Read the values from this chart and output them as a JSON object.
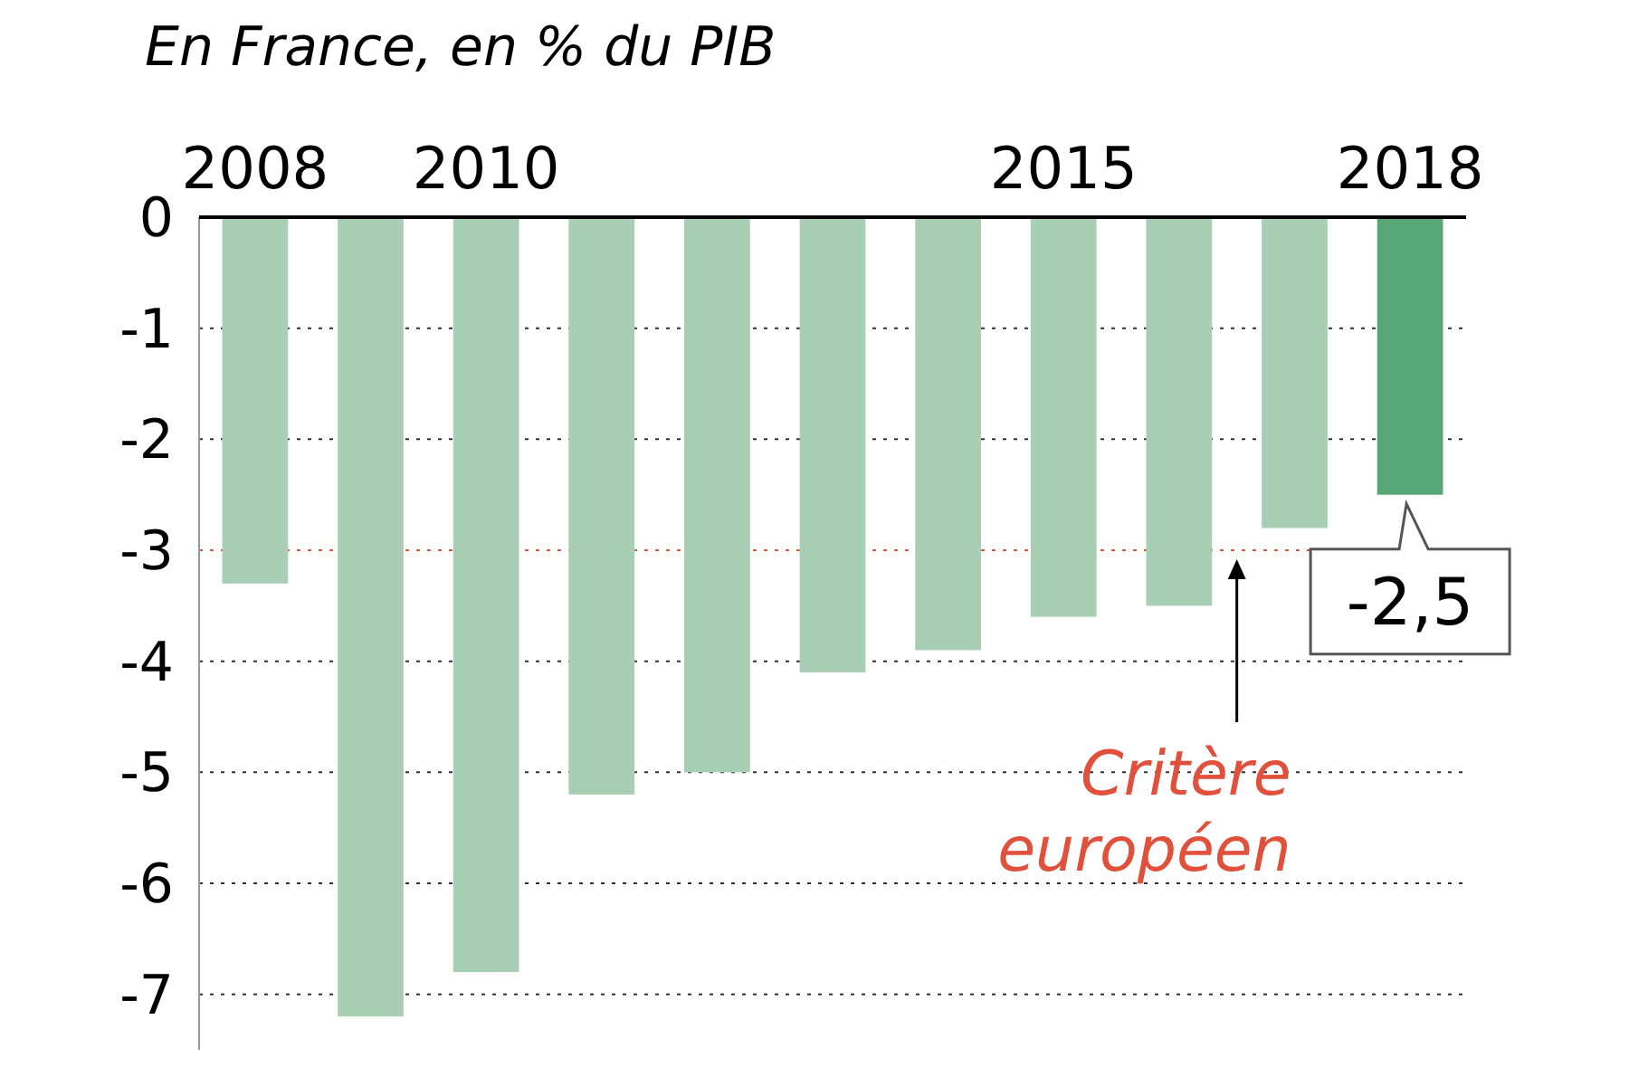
{
  "chart_data": {
    "type": "bar",
    "title": "En France, en % du PIB",
    "categories": [
      "2008",
      null,
      "2010",
      null,
      null,
      null,
      null,
      "2015",
      null,
      null,
      "2018"
    ],
    "values": [
      -3.3,
      -7.2,
      -6.8,
      -5.2,
      -5.0,
      -4.1,
      -3.9,
      -3.6,
      -3.5,
      -2.8,
      -2.5
    ],
    "colors": [
      "#a8cfb4",
      "#a8cfb4",
      "#a8cfb4",
      "#a8cfb4",
      "#a8cfb4",
      "#a8cfb4",
      "#a8cfb4",
      "#a8cfb4",
      "#a8cfb4",
      "#a8cfb4",
      "#57a675"
    ],
    "value_labels": [
      null,
      null,
      null,
      null,
      null,
      null,
      null,
      null,
      null,
      null,
      "-2,5"
    ],
    "ylim": [
      -7.5,
      0
    ],
    "yticks": [
      0,
      -1,
      -2,
      -3,
      -4,
      -5,
      -6,
      -7
    ],
    "grid": "y",
    "ref_lines": [
      {
        "axis": "y",
        "value": -3,
        "label": "Critère européen",
        "color": "#e0503a",
        "line_style": "dotted"
      }
    ]
  }
}
